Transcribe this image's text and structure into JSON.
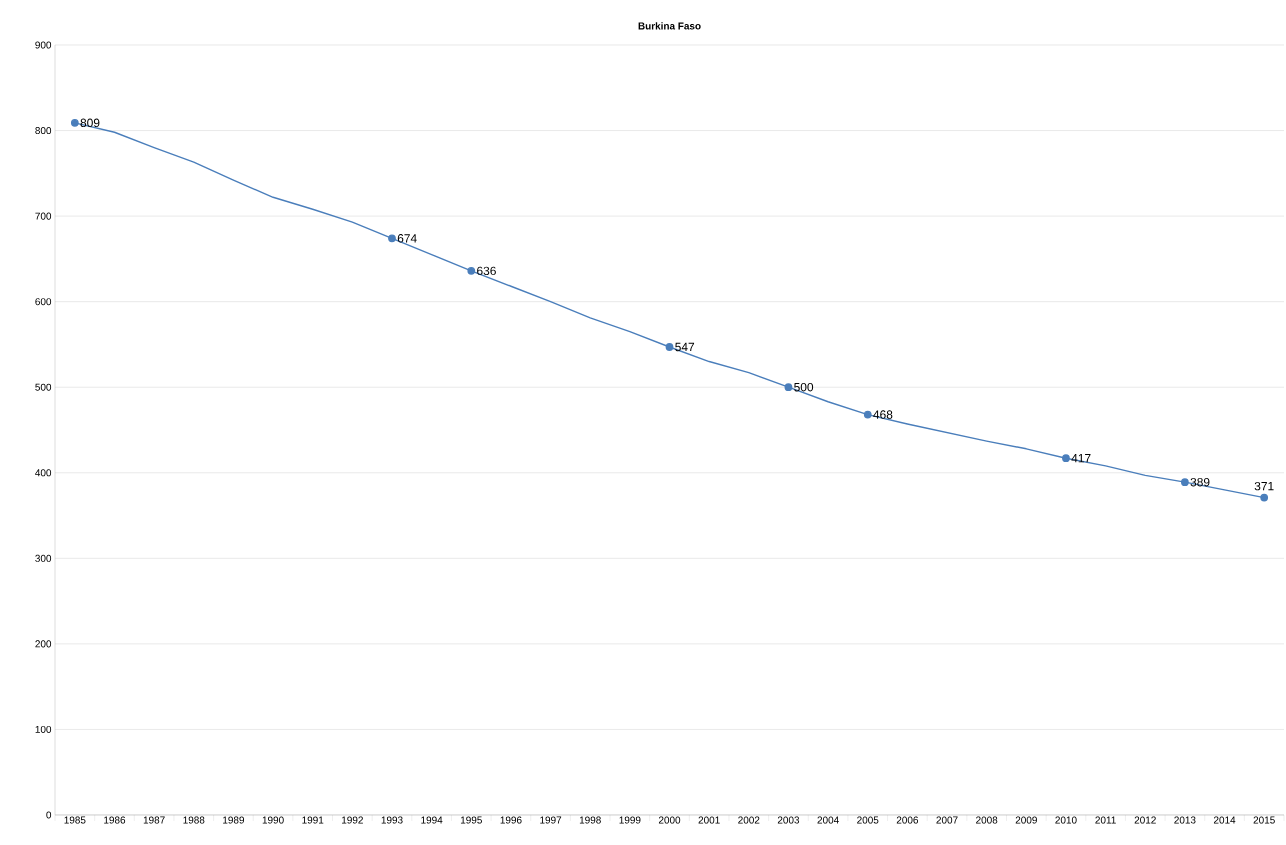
{
  "chart_data": {
    "type": "line",
    "title": "Burkina Faso",
    "categories": [
      "1985",
      "1986",
      "1987",
      "1988",
      "1989",
      "1990",
      "1991",
      "1992",
      "1993",
      "1994",
      "1995",
      "1996",
      "1997",
      "1998",
      "1999",
      "2000",
      "2001",
      "2002",
      "2003",
      "2004",
      "2005",
      "2006",
      "2007",
      "2008",
      "2009",
      "2010",
      "2011",
      "2012",
      "2013",
      "2014",
      "2015"
    ],
    "series": [
      {
        "color": "#4a7ebb",
        "marker": "none",
        "values": [
          809,
          798,
          780,
          763,
          742,
          722,
          708,
          693,
          674,
          655,
          636,
          618,
          600,
          581,
          565,
          547,
          530,
          517,
          500,
          483,
          468,
          457,
          447,
          437,
          428,
          417,
          408,
          397,
          389,
          380,
          371
        ]
      },
      {
        "type": "scatter",
        "color": "#4a7ebb",
        "marker": "circle",
        "values": [
          809,
          null,
          null,
          null,
          null,
          null,
          null,
          null,
          674,
          null,
          636,
          null,
          null,
          null,
          null,
          547,
          null,
          null,
          500,
          null,
          468,
          null,
          null,
          null,
          null,
          417,
          null,
          null,
          389,
          null,
          371
        ],
        "value_labels": [
          "809",
          null,
          null,
          null,
          null,
          null,
          null,
          null,
          "674",
          null,
          "636",
          null,
          null,
          null,
          null,
          "547",
          null,
          null,
          "500",
          null,
          "468",
          null,
          null,
          null,
          null,
          "417",
          null,
          null,
          "389",
          null,
          "371"
        ]
      }
    ],
    "ylim": [
      0,
      900
    ],
    "yticks": [
      0,
      100,
      200,
      300,
      400,
      500,
      600,
      700,
      800,
      900
    ],
    "grid": "y"
  }
}
